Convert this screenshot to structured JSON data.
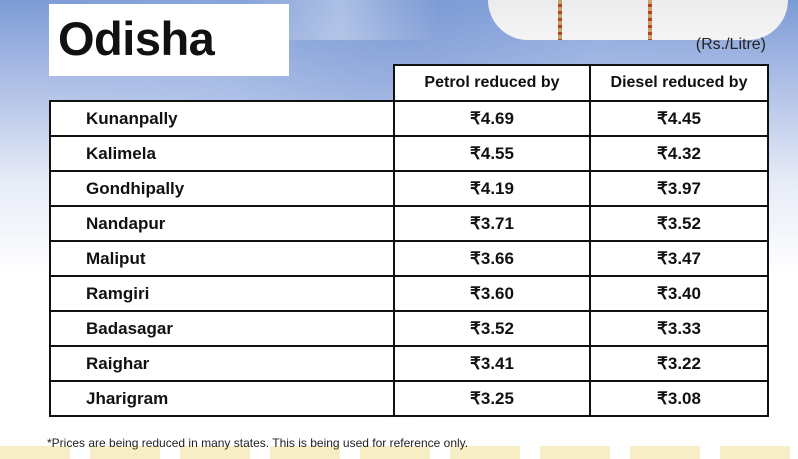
{
  "title": "Odisha",
  "unit_note": "(Rs./Litre)",
  "columns": {
    "petrol": "Petrol reduced by",
    "diesel": "Diesel reduced by"
  },
  "rows": [
    {
      "city": "Kunanpally",
      "petrol": "₹4.69",
      "diesel": "₹4.45"
    },
    {
      "city": "Kalimela",
      "petrol": "₹4.55",
      "diesel": "₹4.32"
    },
    {
      "city": "Gondhipally",
      "petrol": "₹4.19",
      "diesel": "₹3.97"
    },
    {
      "city": "Nandapur",
      "petrol": "₹3.71",
      "diesel": "₹3.52"
    },
    {
      "city": "Maliput",
      "petrol": "₹3.66",
      "diesel": "₹3.47"
    },
    {
      "city": "Ramgiri",
      "petrol": "₹3.60",
      "diesel": "₹3.40"
    },
    {
      "city": "Badasagar",
      "petrol": "₹3.52",
      "diesel": "₹3.33"
    },
    {
      "city": "Raighar",
      "petrol": "₹3.41",
      "diesel": "₹3.22"
    },
    {
      "city": "Jharigram",
      "petrol": "₹3.25",
      "diesel": "₹3.08"
    }
  ],
  "footnote": "*Prices are being reduced in many states. This is being used for reference only.",
  "colors": {
    "background_top": "#7c9bd6",
    "text": "#111111",
    "border": "#111111"
  }
}
